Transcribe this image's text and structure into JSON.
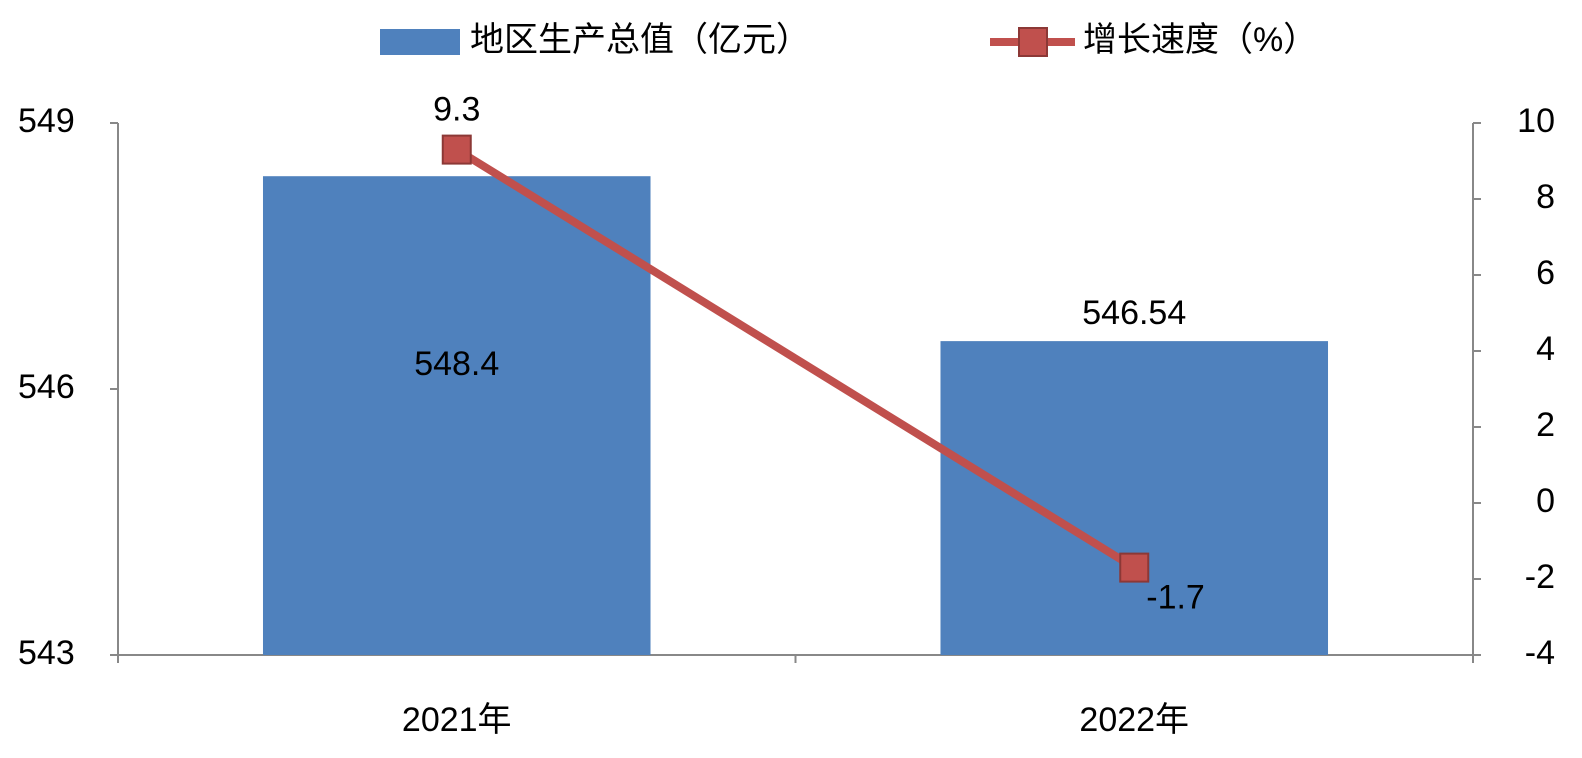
{
  "chart_data": {
    "type": "combo",
    "categories": [
      "2021年",
      "2022年"
    ],
    "series": [
      {
        "name": "地区生产总值（亿元）",
        "type": "bar",
        "color": "#4f81bd",
        "values": [
          548.4,
          546.54
        ]
      },
      {
        "name": "增长速度（%）",
        "type": "line",
        "axis": "y2",
        "color": "#c0504d",
        "values": [
          9.3,
          -1.7
        ]
      }
    ],
    "ylim": [
      543,
      549
    ],
    "yticks": [
      543,
      546,
      549
    ],
    "y2lim": [
      -4,
      10
    ],
    "y2ticks": [
      -4,
      -2,
      0,
      2,
      4,
      6,
      8,
      10
    ],
    "legend": "top"
  }
}
